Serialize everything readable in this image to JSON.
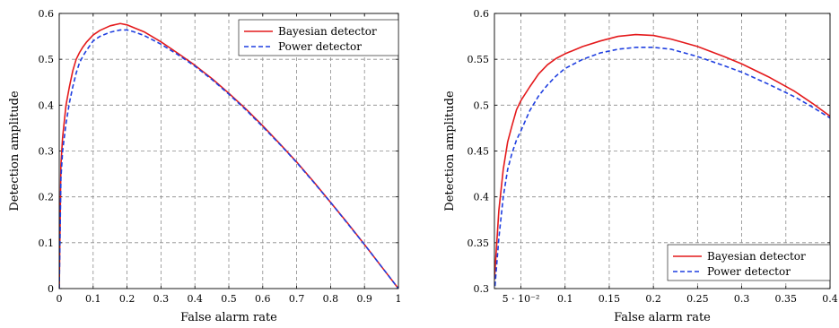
{
  "chart_data": [
    {
      "type": "line",
      "title": "",
      "xlabel": "False alarm rate",
      "ylabel": "Detection amplitude",
      "xlim": [
        0,
        1
      ],
      "ylim": [
        0,
        0.6
      ],
      "x_ticks": [
        0,
        0.1,
        0.2,
        0.3,
        0.4,
        0.5,
        0.6,
        0.7,
        0.8,
        0.9,
        1
      ],
      "x_tick_labels": [
        "0",
        "0.1",
        "0.2",
        "0.3",
        "0.4",
        "0.5",
        "0.6",
        "0.7",
        "0.8",
        "0.9",
        "1"
      ],
      "y_ticks": [
        0,
        0.1,
        0.2,
        0.3,
        0.4,
        0.5,
        0.6
      ],
      "y_tick_labels": [
        "0",
        "0.1",
        "0.2",
        "0.3",
        "0.4",
        "0.5",
        "0.6"
      ],
      "grid": true,
      "legend_position": "top-right",
      "series": [
        {
          "name": "Bayesian detector",
          "color": "#e41a1c",
          "style": "solid",
          "x": [
            0,
            0.005,
            0.01,
            0.02,
            0.03,
            0.04,
            0.05,
            0.06,
            0.07,
            0.08,
            0.1,
            0.12,
            0.15,
            0.18,
            0.2,
            0.22,
            0.25,
            0.3,
            0.35,
            0.4,
            0.45,
            0.5,
            0.55,
            0.6,
            0.65,
            0.7,
            0.75,
            0.8,
            0.85,
            0.9,
            0.95,
            1
          ],
          "y": [
            0,
            0.27,
            0.33,
            0.4,
            0.44,
            0.475,
            0.5,
            0.515,
            0.527,
            0.537,
            0.553,
            0.563,
            0.573,
            0.578,
            0.575,
            0.569,
            0.56,
            0.538,
            0.513,
            0.487,
            0.458,
            0.426,
            0.392,
            0.355,
            0.316,
            0.276,
            0.233,
            0.188,
            0.143,
            0.096,
            0.048,
            0
          ]
        },
        {
          "name": "Power detector",
          "color": "#1f3fe0",
          "style": "dashed",
          "x": [
            0,
            0.005,
            0.01,
            0.02,
            0.03,
            0.04,
            0.05,
            0.06,
            0.07,
            0.08,
            0.1,
            0.12,
            0.15,
            0.18,
            0.2,
            0.22,
            0.25,
            0.3,
            0.35,
            0.4,
            0.45,
            0.5,
            0.55,
            0.6,
            0.65,
            0.7,
            0.75,
            0.8,
            0.85,
            0.9,
            0.95,
            1
          ],
          "y": [
            0,
            0.24,
            0.3,
            0.36,
            0.405,
            0.44,
            0.47,
            0.493,
            0.507,
            0.519,
            0.54,
            0.55,
            0.559,
            0.564,
            0.564,
            0.56,
            0.552,
            0.533,
            0.51,
            0.485,
            0.456,
            0.424,
            0.39,
            0.353,
            0.315,
            0.275,
            0.232,
            0.188,
            0.142,
            0.096,
            0.048,
            0
          ]
        }
      ]
    },
    {
      "type": "line",
      "title": "",
      "xlabel": "False alarm rate",
      "ylabel": "Detection amplitude",
      "xlim": [
        0.02,
        0.4
      ],
      "ylim": [
        0.3,
        0.6
      ],
      "x_ticks": [
        0.05,
        0.1,
        0.15,
        0.2,
        0.25,
        0.3,
        0.35,
        0.4
      ],
      "x_tick_labels": [
        "5 · 10⁻²",
        "0.1",
        "0.15",
        "0.2",
        "0.25",
        "0.3",
        "0.35",
        "0.4"
      ],
      "y_ticks": [
        0.3,
        0.35,
        0.4,
        0.45,
        0.5,
        0.55,
        0.6
      ],
      "y_tick_labels": [
        "0.3",
        "0.35",
        "0.4",
        "0.45",
        "0.5",
        "0.55",
        "0.6"
      ],
      "grid": true,
      "legend_position": "bottom-right",
      "series": [
        {
          "name": "Bayesian detector",
          "color": "#e41a1c",
          "style": "solid",
          "x": [
            0.02,
            0.025,
            0.03,
            0.035,
            0.04,
            0.045,
            0.05,
            0.06,
            0.07,
            0.08,
            0.09,
            0.1,
            0.12,
            0.14,
            0.16,
            0.18,
            0.2,
            0.22,
            0.25,
            0.28,
            0.3,
            0.33,
            0.36,
            0.38,
            0.4
          ],
          "y": [
            0.31,
            0.385,
            0.43,
            0.46,
            0.478,
            0.495,
            0.505,
            0.52,
            0.534,
            0.544,
            0.551,
            0.556,
            0.564,
            0.57,
            0.575,
            0.577,
            0.576,
            0.572,
            0.564,
            0.553,
            0.545,
            0.531,
            0.515,
            0.502,
            0.488
          ]
        },
        {
          "name": "Power detector",
          "color": "#1f3fe0",
          "style": "dashed",
          "x": [
            0.02,
            0.025,
            0.03,
            0.035,
            0.04,
            0.045,
            0.05,
            0.06,
            0.07,
            0.08,
            0.09,
            0.1,
            0.12,
            0.14,
            0.16,
            0.18,
            0.2,
            0.22,
            0.25,
            0.28,
            0.3,
            0.33,
            0.36,
            0.38,
            0.4
          ],
          "y": [
            0.295,
            0.355,
            0.4,
            0.43,
            0.448,
            0.462,
            0.472,
            0.494,
            0.51,
            0.522,
            0.532,
            0.54,
            0.55,
            0.557,
            0.561,
            0.563,
            0.563,
            0.561,
            0.553,
            0.543,
            0.536,
            0.523,
            0.509,
            0.498,
            0.486
          ]
        }
      ]
    }
  ]
}
